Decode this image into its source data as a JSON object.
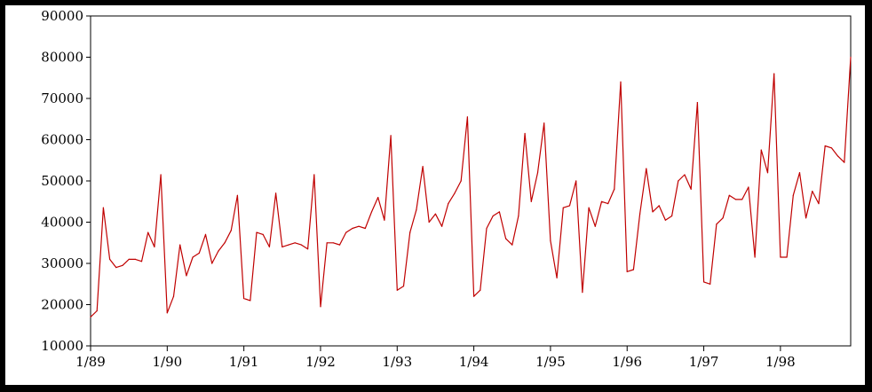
{
  "chart_data": {
    "type": "line",
    "title": "",
    "xlabel": "",
    "ylabel": "",
    "color": "#c00000",
    "ylim": [
      10000,
      90000
    ],
    "yticks": [
      10000,
      20000,
      30000,
      40000,
      50000,
      60000,
      70000,
      80000,
      90000
    ],
    "ytick_labels": [
      "10000",
      "20000",
      "30000",
      "40000",
      "50000",
      "60000",
      "70000",
      "80000",
      "90000"
    ],
    "xlim": [
      "1989-01",
      "1998-12"
    ],
    "xtick_labels": [
      "1/89",
      "1/90",
      "1/91",
      "1/92",
      "1/93",
      "1/94",
      "1/95",
      "1/96",
      "1/97",
      "1/98"
    ],
    "grid": false,
    "series": [
      {
        "name": "",
        "x": [
          "1989-01",
          "1989-02",
          "1989-03",
          "1989-04",
          "1989-05",
          "1989-06",
          "1989-07",
          "1989-08",
          "1989-09",
          "1989-10",
          "1989-11",
          "1989-12",
          "1990-01",
          "1990-02",
          "1990-03",
          "1990-04",
          "1990-05",
          "1990-06",
          "1990-07",
          "1990-08",
          "1990-09",
          "1990-10",
          "1990-11",
          "1990-12",
          "1991-01",
          "1991-02",
          "1991-03",
          "1991-04",
          "1991-05",
          "1991-06",
          "1991-07",
          "1991-08",
          "1991-09",
          "1991-10",
          "1991-11",
          "1991-12",
          "1992-01",
          "1992-02",
          "1992-03",
          "1992-04",
          "1992-05",
          "1992-06",
          "1992-07",
          "1992-08",
          "1992-09",
          "1992-10",
          "1992-11",
          "1992-12",
          "1993-01",
          "1993-02",
          "1993-03",
          "1993-04",
          "1993-05",
          "1993-06",
          "1993-07",
          "1993-08",
          "1993-09",
          "1993-10",
          "1993-11",
          "1993-12",
          "1994-01",
          "1994-02",
          "1994-03",
          "1994-04",
          "1994-05",
          "1994-06",
          "1994-07",
          "1994-08",
          "1994-09",
          "1994-10",
          "1994-11",
          "1994-12",
          "1995-01",
          "1995-02",
          "1995-03",
          "1995-04",
          "1995-05",
          "1995-06",
          "1995-07",
          "1995-08",
          "1995-09",
          "1995-10",
          "1995-11",
          "1995-12",
          "1996-01",
          "1996-02",
          "1996-03",
          "1996-04",
          "1996-05",
          "1996-06",
          "1996-07",
          "1996-08",
          "1996-09",
          "1996-10",
          "1996-11",
          "1996-12",
          "1997-01",
          "1997-02",
          "1997-03",
          "1997-04",
          "1997-05",
          "1997-06",
          "1997-07",
          "1997-08",
          "1997-09",
          "1997-10",
          "1997-11",
          "1997-12",
          "1998-01",
          "1998-02",
          "1998-03",
          "1998-04",
          "1998-05",
          "1998-06",
          "1998-07",
          "1998-08",
          "1998-09",
          "1998-10",
          "1998-11",
          "1998-12"
        ],
        "values": [
          17000,
          18500,
          43500,
          31000,
          29000,
          29500,
          31000,
          31000,
          30500,
          37500,
          34000,
          51500,
          18000,
          22000,
          34500,
          27000,
          31500,
          32500,
          37000,
          30000,
          33000,
          35000,
          38000,
          46500,
          21500,
          21000,
          37500,
          37000,
          34000,
          47000,
          34000,
          34500,
          35000,
          34500,
          33500,
          51500,
          19500,
          35000,
          35000,
          34500,
          37500,
          38500,
          39000,
          38500,
          42500,
          46000,
          40500,
          61000,
          23500,
          24500,
          37500,
          43000,
          53500,
          40000,
          42000,
          39000,
          44500,
          47000,
          50000,
          65500,
          22000,
          23500,
          38500,
          41500,
          42500,
          36000,
          34500,
          41500,
          61500,
          45000,
          52000,
          64000,
          35500,
          26500,
          43500,
          44000,
          50000,
          23000,
          43500,
          39000,
          45000,
          44500,
          48000,
          74000,
          28000,
          28500,
          42000,
          53000,
          42500,
          44000,
          40500,
          41500,
          50000,
          51500,
          48000,
          69000,
          25500,
          25000,
          39500,
          41000,
          46500,
          45500,
          45500,
          48500,
          31500,
          57500,
          52000,
          76000,
          31500,
          31500,
          46500,
          52000,
          41000,
          47500,
          44500,
          58500,
          58000,
          56000,
          54500,
          80000
        ]
      }
    ]
  }
}
